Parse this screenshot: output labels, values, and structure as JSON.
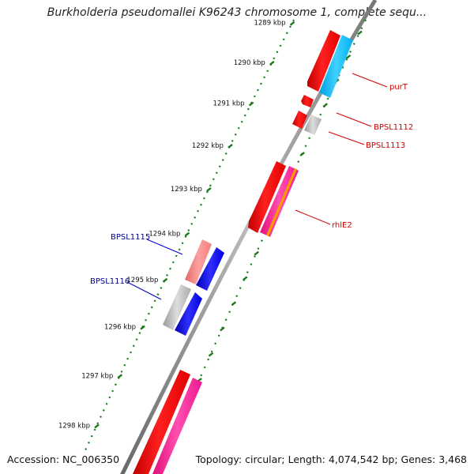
{
  "title": "Burkholderia pseudomallei K96243 chromosome 1, complete sequ...",
  "footer": {
    "accession": "Accession: NC_006350",
    "summary": "Topology: circular; Length: 4,074,542 bp; Genes: 3,468"
  },
  "scale": {
    "tick_color": "#1a7a1a",
    "ticks": [
      {
        "kbp": 1289,
        "label": "1289 kbp"
      },
      {
        "kbp": 1290,
        "label": "1290 kbp"
      },
      {
        "kbp": 1291,
        "label": "1291 kbp"
      },
      {
        "kbp": 1292,
        "label": "1292 kbp"
      },
      {
        "kbp": 1293,
        "label": "1293 kbp"
      },
      {
        "kbp": 1294,
        "label": "1294 kbp"
      },
      {
        "kbp": 1295,
        "label": "1295 kbp"
      },
      {
        "kbp": 1296,
        "label": "1296 kbp"
      },
      {
        "kbp": 1297,
        "label": "1297 kbp"
      },
      {
        "kbp": 1298,
        "label": "1298 kbp"
      }
    ]
  },
  "genes": [
    {
      "id": "purT",
      "label": "purT",
      "label_color": "#d00000",
      "line_color": "#d00000",
      "fill": "#ff0000",
      "strand": "forward",
      "track": 1
    },
    {
      "id": "purT-cds",
      "label": "",
      "fill": "#00bfff",
      "strand": "forward",
      "track": 2
    },
    {
      "id": "BPSL1112",
      "label": "BPSL1112",
      "label_color": "#d00000",
      "line_color": "#d00000",
      "fill": "#ff0000",
      "strand": "forward",
      "track": 1
    },
    {
      "id": "BPSL1112-b",
      "label": "",
      "fill": "#ff0000",
      "strand": "forward",
      "track": 1
    },
    {
      "id": "BPSL1113",
      "label": "BPSL1113",
      "label_color": "#d00000",
      "line_color": "#d00000",
      "fill": "#bbbbbb",
      "strand": "forward",
      "track": 2
    },
    {
      "id": "rhlE2",
      "label": "rhlE2",
      "label_color": "#d00000",
      "line_color": "#d00000",
      "fill": "#ff0000",
      "strand": "forward",
      "track": 1
    },
    {
      "id": "rhlE2-cds",
      "label": "",
      "fill": "#ff1493",
      "stripe": "#ff9900",
      "strand": "forward",
      "track": 2
    },
    {
      "id": "BPSL1115",
      "label": "BPSL1115",
      "label_color": "#00008b",
      "line_color": "#0000cc",
      "fill": "#f08080",
      "strand": "reverse",
      "track": 2
    },
    {
      "id": "BPSL1115-cds",
      "label": "",
      "fill": "#0000ee",
      "strand": "reverse",
      "track": 1
    },
    {
      "id": "BPSL1116",
      "label": "BPSL1116",
      "label_color": "#00008b",
      "line_color": "#0000cc",
      "fill": "#bbbbbb",
      "strand": "reverse",
      "track": 2
    },
    {
      "id": "BPSL1116-cds",
      "label": "",
      "fill": "#0000ee",
      "strand": "reverse",
      "track": 1
    },
    {
      "id": "next-gene",
      "label": "",
      "fill": "#ff0000",
      "strand": "forward",
      "track": 1
    },
    {
      "id": "next-gene-cds",
      "label": "",
      "fill": "#ff1493",
      "strand": "forward",
      "track": 2
    }
  ]
}
